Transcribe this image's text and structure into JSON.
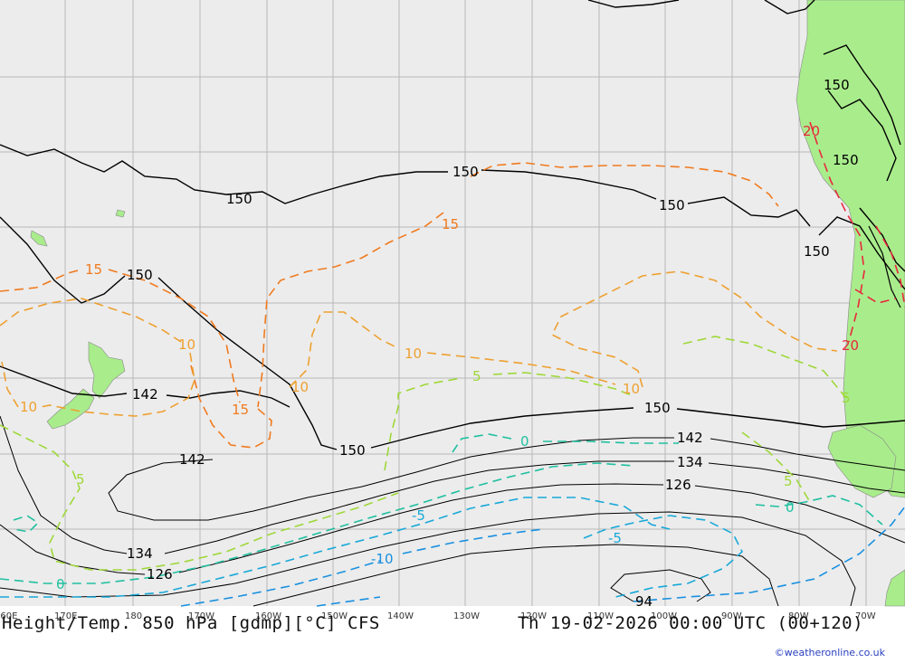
{
  "title": "Height/Temp. 850 hPa [gdmp][°C] CFS",
  "valid_time": "Th 19-02-2026 00:00 UTC (00+120)",
  "credit": "©weatheronline.co.uk",
  "longitude_labels": [
    "160E",
    "170E",
    "180",
    "170W",
    "160W",
    "150W",
    "140W",
    "130W",
    "120W",
    "110W",
    "100W",
    "90W",
    "80W",
    "70W"
  ],
  "height_labels": [
    "150",
    "150",
    "150",
    "150",
    "150",
    "150",
    "150",
    "150",
    "150",
    "142",
    "142",
    "142",
    "134",
    "134",
    "126",
    "126",
    "94"
  ],
  "temperature_labels": [
    "15",
    "15",
    "15",
    "10",
    "10",
    "10",
    "10",
    "10",
    "20",
    "20",
    "5",
    "5",
    "5",
    "5",
    "0",
    "0",
    "0",
    "-5",
    "-5",
    "-10"
  ],
  "colors": {
    "ocean": "#ececec",
    "land": "#a9ec8c",
    "grid": "#b8b8b8",
    "height_contour": "#000000",
    "temp_20": "#e8283c",
    "temp_15": "#f07a1e",
    "temp_10": "#eea030",
    "temp_5": "#9ed838",
    "temp_0": "#20c0a0",
    "temp_minus5": "#18a8d8",
    "temp_minus10": "#1890e0"
  }
}
